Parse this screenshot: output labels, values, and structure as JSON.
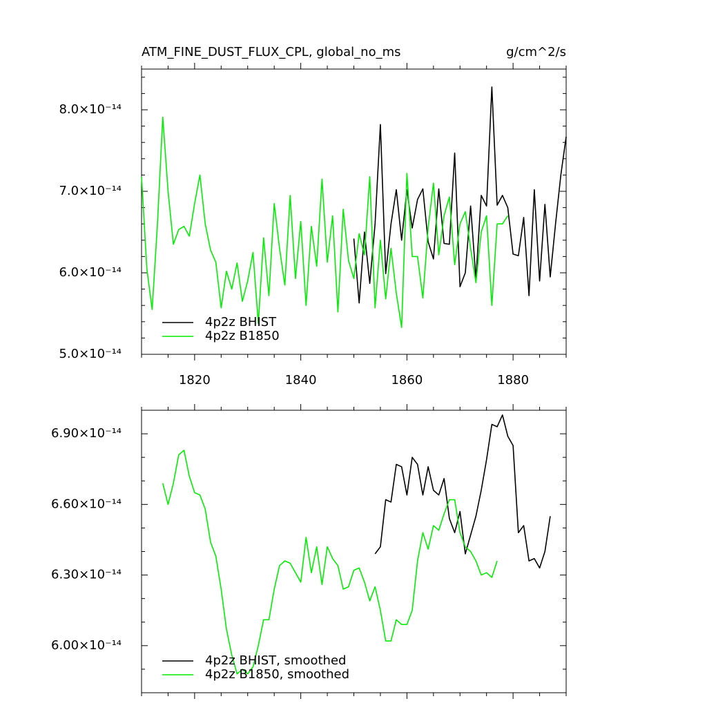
{
  "chart_data": [
    {
      "type": "line",
      "title": "ATM_FINE_DUST_FLUX_CPL, global_no_ms",
      "units": "g/cm^2/s",
      "xlim": [
        1810,
        1890
      ],
      "xticks": [
        1820,
        1840,
        1860,
        1880
      ],
      "xtick_labels": true,
      "xminor": 4,
      "ylim": [
        5e-14,
        8.5e-14
      ],
      "yticks": [
        {
          "value": 5e-14,
          "label": "5.0×10⁻¹⁴"
        },
        {
          "value": 6e-14,
          "label": "6.0×10⁻¹⁴"
        },
        {
          "value": 7e-14,
          "label": "7.0×10⁻¹⁴"
        },
        {
          "value": 8e-14,
          "label": "8.0×10⁻¹⁴"
        }
      ],
      "yminor": 5,
      "legend": "lower left",
      "series": [
        {
          "name": "4p2z BHIST",
          "color": "#000000",
          "x": [
            1850,
            1851,
            1852,
            1853,
            1854,
            1855,
            1856,
            1857,
            1858,
            1859,
            1860,
            1861,
            1862,
            1863,
            1864,
            1865,
            1866,
            1867,
            1868,
            1869,
            1870,
            1871,
            1872,
            1873,
            1874,
            1875,
            1876,
            1877,
            1878,
            1879,
            1880,
            1881,
            1882,
            1883,
            1884,
            1885,
            1886,
            1887,
            1888,
            1889,
            1890
          ],
          "values": [
            6.42e-14,
            5.63e-14,
            6.5e-14,
            5.87e-14,
            6.6e-14,
            7.82e-14,
            5.99e-14,
            6.6e-14,
            7.02e-14,
            6.4e-14,
            7.02e-14,
            6.55e-14,
            6.9e-14,
            7.03e-14,
            6.38e-14,
            6.17e-14,
            7.03e-14,
            6.36e-14,
            6.35e-14,
            7.47e-14,
            5.83e-14,
            6e-14,
            6.82e-14,
            5.93e-14,
            6.95e-14,
            6.82e-14,
            8.28e-14,
            6.83e-14,
            6.95e-14,
            6.8e-14,
            6.23e-14,
            6.21e-14,
            6.68e-14,
            5.72e-14,
            7.02e-14,
            5.9e-14,
            6.84e-14,
            5.95e-14,
            6.6e-14,
            7.2e-14,
            7.67e-14
          ]
        },
        {
          "name": "4p2z B1850",
          "color": "#00ee00",
          "x": [
            1810,
            1811,
            1812,
            1813,
            1814,
            1815,
            1816,
            1817,
            1818,
            1819,
            1820,
            1821,
            1822,
            1823,
            1824,
            1825,
            1826,
            1827,
            1828,
            1829,
            1830,
            1831,
            1832,
            1833,
            1834,
            1835,
            1836,
            1837,
            1838,
            1839,
            1840,
            1841,
            1842,
            1843,
            1844,
            1845,
            1846,
            1847,
            1848,
            1849,
            1850,
            1851,
            1852,
            1853,
            1854,
            1855,
            1856,
            1857,
            1858,
            1859,
            1860,
            1861,
            1862,
            1863,
            1864,
            1865,
            1866,
            1867,
            1868,
            1869,
            1870,
            1871,
            1872,
            1873,
            1874,
            1875,
            1876,
            1877,
            1878,
            1879
          ],
          "values": [
            7.18e-14,
            6.05e-14,
            5.55e-14,
            6.6e-14,
            7.91e-14,
            7e-14,
            6.35e-14,
            6.53e-14,
            6.57e-14,
            6.45e-14,
            6.85e-14,
            7.2e-14,
            6.6e-14,
            6.28e-14,
            6.13e-14,
            5.57e-14,
            6.02e-14,
            5.8e-14,
            6.12e-14,
            5.65e-14,
            5.9e-14,
            6.25e-14,
            5.38e-14,
            6.43e-14,
            5.72e-14,
            6.85e-14,
            6.3e-14,
            5.85e-14,
            6.95e-14,
            5.93e-14,
            6.63e-14,
            5.6e-14,
            6.57e-14,
            6.08e-14,
            7.15e-14,
            6.13e-14,
            6.7e-14,
            5.52e-14,
            6.78e-14,
            6.15e-14,
            5.93e-14,
            6.48e-14,
            6.22e-14,
            7.18e-14,
            5.57e-14,
            6.4e-14,
            5.68e-14,
            6.3e-14,
            5.75e-14,
            5.33e-14,
            7.22e-14,
            6.2e-14,
            6.2e-14,
            5.69e-14,
            6.55e-14,
            7.1e-14,
            6.22e-14,
            6.7e-14,
            6.93e-14,
            6.1e-14,
            6.6e-14,
            6.75e-14,
            6.3e-14,
            5.88e-14,
            6.5e-14,
            6.7e-14,
            5.6e-14,
            6.6e-14,
            6.6e-14,
            6.7e-14
          ]
        }
      ]
    },
    {
      "type": "line",
      "xlim": [
        1810,
        1890
      ],
      "xticks": [
        1820,
        1840,
        1860,
        1880
      ],
      "xtick_labels": false,
      "xminor": 4,
      "ylim": [
        5.8e-14,
        7e-14
      ],
      "yticks": [
        {
          "value": 6e-14,
          "label": "6.00×10⁻¹⁴"
        },
        {
          "value": 6.3e-14,
          "label": "6.30×10⁻¹⁴"
        },
        {
          "value": 6.6e-14,
          "label": "6.60×10⁻¹⁴"
        },
        {
          "value": 6.9e-14,
          "label": "6.90×10⁻¹⁴"
        }
      ],
      "yminor": 3,
      "legend": "lower left",
      "series": [
        {
          "name": "4p2z BHIST, smoothed",
          "color": "#000000",
          "x": [
            1854,
            1855,
            1856,
            1857,
            1858,
            1859,
            1860,
            1861,
            1862,
            1863,
            1864,
            1865,
            1866,
            1867,
            1868,
            1869,
            1870,
            1871,
            1872,
            1873,
            1874,
            1875,
            1876,
            1877,
            1878,
            1879,
            1880,
            1881,
            1882,
            1883,
            1884,
            1885,
            1886,
            1887
          ],
          "values": [
            6.39e-14,
            6.42e-14,
            6.62e-14,
            6.61e-14,
            6.77e-14,
            6.76e-14,
            6.64e-14,
            6.8e-14,
            6.77e-14,
            6.64e-14,
            6.76e-14,
            6.66e-14,
            6.64e-14,
            6.71e-14,
            6.54e-14,
            6.48e-14,
            6.57e-14,
            6.39e-14,
            6.47e-14,
            6.55e-14,
            6.66e-14,
            6.79e-14,
            6.94e-14,
            6.93e-14,
            6.98e-14,
            6.89e-14,
            6.85e-14,
            6.48e-14,
            6.51e-14,
            6.36e-14,
            6.37e-14,
            6.33e-14,
            6.4e-14,
            6.55e-14
          ]
        },
        {
          "name": "4p2z B1850, smoothed",
          "color": "#00ee00",
          "x": [
            1814,
            1815,
            1816,
            1817,
            1818,
            1819,
            1820,
            1821,
            1822,
            1823,
            1824,
            1825,
            1826,
            1827,
            1828,
            1829,
            1830,
            1831,
            1832,
            1833,
            1834,
            1835,
            1836,
            1837,
            1838,
            1839,
            1840,
            1841,
            1842,
            1843,
            1844,
            1845,
            1846,
            1847,
            1848,
            1849,
            1850,
            1851,
            1852,
            1853,
            1854,
            1855,
            1856,
            1857,
            1858,
            1859,
            1860,
            1861,
            1862,
            1863,
            1864,
            1865,
            1866,
            1867,
            1868,
            1869,
            1870,
            1871,
            1872,
            1873,
            1874,
            1875,
            1876,
            1877
          ],
          "values": [
            6.69e-14,
            6.6e-14,
            6.69e-14,
            6.81e-14,
            6.83e-14,
            6.72e-14,
            6.65e-14,
            6.64e-14,
            6.58e-14,
            6.44e-14,
            6.38e-14,
            6.24e-14,
            6.07e-14,
            5.96e-14,
            5.88e-14,
            5.9e-14,
            5.88e-14,
            5.91e-14,
            6e-14,
            6.11e-14,
            6.11e-14,
            6.24e-14,
            6.34e-14,
            6.36e-14,
            6.35e-14,
            6.31e-14,
            6.27e-14,
            6.46e-14,
            6.31e-14,
            6.42e-14,
            6.26e-14,
            6.42e-14,
            6.37e-14,
            6.34e-14,
            6.24e-14,
            6.25e-14,
            6.32e-14,
            6.33e-14,
            6.27e-14,
            6.19e-14,
            6.25e-14,
            6.15e-14,
            6.02e-14,
            6.02e-14,
            6.11e-14,
            6.09e-14,
            6.09e-14,
            6.15e-14,
            6.36e-14,
            6.48e-14,
            6.41e-14,
            6.51e-14,
            6.49e-14,
            6.56e-14,
            6.62e-14,
            6.62e-14,
            6.48e-14,
            6.42e-14,
            6.4e-14,
            6.36e-14,
            6.3e-14,
            6.31e-14,
            6.29e-14,
            6.36e-14
          ]
        }
      ]
    }
  ]
}
